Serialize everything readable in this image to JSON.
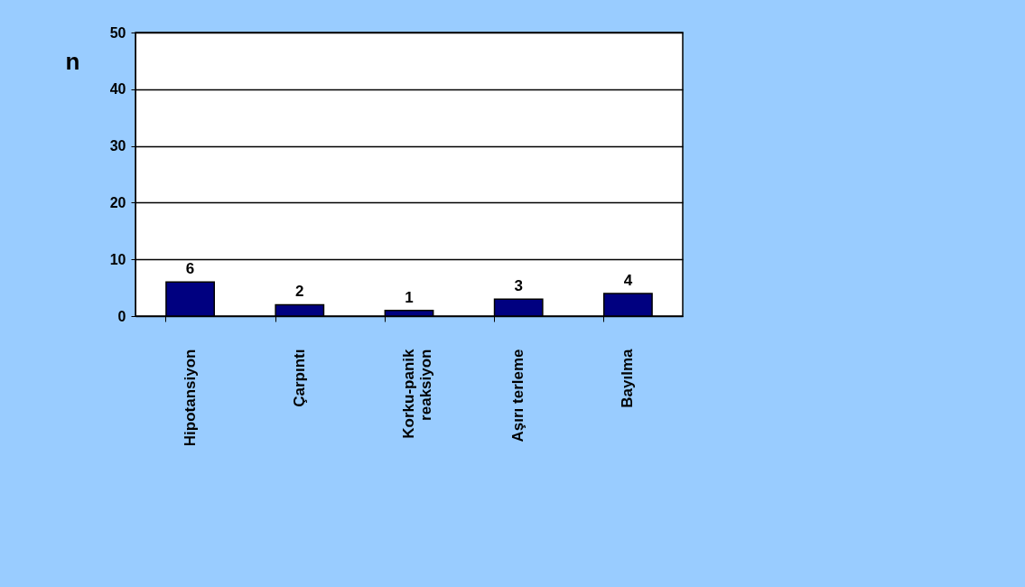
{
  "chart_data": {
    "type": "bar",
    "ylabel": "n",
    "categories": [
      "Hipotansiyon",
      "Çarpıntı",
      "Korku-panik reaksiyon",
      "Aşırı terleme",
      "Bayılma"
    ],
    "values": [
      6,
      2,
      1,
      3,
      4
    ],
    "color": "#000080",
    "ylim": [
      0,
      50
    ],
    "yticks": [
      0,
      10,
      20,
      30,
      40,
      50
    ],
    "grid": "y",
    "data_labels": true
  }
}
